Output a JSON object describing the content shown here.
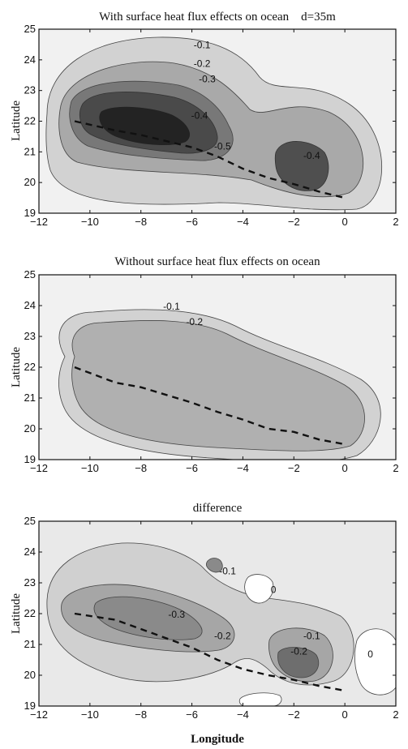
{
  "chart_data": [
    {
      "type": "contour",
      "title": "With surface heat flux effects on ocean    d=35m",
      "ylabel": "Latitude",
      "xlabel": "",
      "xlim": [
        -12,
        2
      ],
      "ylim": [
        19,
        25
      ],
      "xticks": [
        -12,
        -10,
        -8,
        -6,
        -4,
        -2,
        0,
        2
      ],
      "xtick_labels": [
        "−12",
        "−10",
        "−8",
        "−6",
        "−4",
        "−2",
        "0",
        "2"
      ],
      "yticks": [
        19,
        20,
        21,
        22,
        23,
        24,
        25
      ],
      "contour_levels": [
        -0.1,
        -0.2,
        -0.3,
        -0.4,
        -0.5
      ],
      "contour_labels": [
        {
          "text": "-0.1",
          "x": -5.6,
          "y": 24.4
        },
        {
          "text": "-0.2",
          "x": -5.6,
          "y": 23.8
        },
        {
          "text": "-0.3",
          "x": -5.4,
          "y": 23.3
        },
        {
          "text": "-0.4",
          "x": -5.7,
          "y": 22.1
        },
        {
          "text": "-0.5",
          "x": -4.8,
          "y": 21.1
        },
        {
          "text": "-0.4",
          "x": -1.3,
          "y": 20.8
        }
      ],
      "track": {
        "x": [
          -10.6,
          -9,
          -8,
          -7,
          -6,
          -5,
          -4,
          -3,
          -2,
          -1,
          0
        ],
        "y": [
          22.0,
          21.7,
          21.55,
          21.35,
          21.15,
          20.85,
          20.45,
          20.15,
          19.95,
          19.7,
          19.5
        ]
      }
    },
    {
      "type": "contour",
      "title": "Without surface heat flux effects on ocean",
      "ylabel": "Latitude",
      "xlabel": "",
      "xlim": [
        -12,
        2
      ],
      "ylim": [
        19,
        25
      ],
      "xticks": [
        -12,
        -10,
        -8,
        -6,
        -4,
        -2,
        0,
        2
      ],
      "xtick_labels": [
        "−12",
        "−10",
        "−8",
        "−6",
        "−4",
        "−2",
        "0",
        "2"
      ],
      "yticks": [
        19,
        20,
        21,
        22,
        23,
        24,
        25
      ],
      "contour_levels": [
        -0.1,
        -0.2
      ],
      "contour_labels": [
        {
          "text": "-0.1",
          "x": -6.8,
          "y": 23.9
        },
        {
          "text": "-0.2",
          "x": -5.9,
          "y": 23.4
        }
      ],
      "track": {
        "x": [
          -10.6,
          -9,
          -8,
          -7,
          -6,
          -5,
          -4,
          -3,
          -2,
          -1,
          0
        ],
        "y": [
          22.0,
          21.5,
          21.35,
          21.1,
          20.85,
          20.55,
          20.3,
          20.0,
          19.9,
          19.65,
          19.5
        ]
      }
    },
    {
      "type": "contour",
      "title": "difference",
      "ylabel": "Latitude",
      "xlabel": "Longitude",
      "xlim": [
        -12,
        2
      ],
      "ylim": [
        19,
        25
      ],
      "xticks": [
        -12,
        -10,
        -8,
        -6,
        -4,
        -2,
        0,
        2
      ],
      "xtick_labels": [
        "−12",
        "−10",
        "−8",
        "−6",
        "−4",
        "−2",
        "0",
        "2"
      ],
      "yticks": [
        19,
        20,
        21,
        22,
        23,
        24,
        25
      ],
      "contour_levels": [
        0,
        -0.1,
        -0.2,
        -0.3
      ],
      "contour_labels": [
        {
          "text": "-0.1",
          "x": -4.6,
          "y": 23.3
        },
        {
          "text": "0",
          "x": -2.8,
          "y": 22.7
        },
        {
          "text": "-0.3",
          "x": -6.6,
          "y": 21.9
        },
        {
          "text": "-0.2",
          "x": -4.8,
          "y": 21.2
        },
        {
          "text": "-0.1",
          "x": -1.3,
          "y": 21.2
        },
        {
          "text": "-0.2",
          "x": -1.8,
          "y": 20.7
        },
        {
          "text": "0",
          "x": 1.0,
          "y": 20.6
        }
      ],
      "track": {
        "x": [
          -10.6,
          -9,
          -8,
          -7,
          -6,
          -5,
          -4,
          -3,
          -2,
          -1,
          0
        ],
        "y": [
          22.0,
          21.8,
          21.5,
          21.2,
          20.9,
          20.5,
          20.2,
          20.0,
          19.85,
          19.65,
          19.5
        ]
      }
    }
  ]
}
